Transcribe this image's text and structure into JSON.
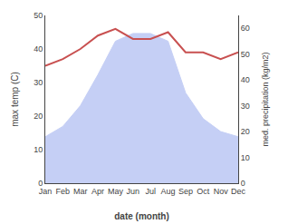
{
  "chart_data": {
    "type": "line",
    "categories": [
      "Jan",
      "Feb",
      "Mar",
      "Apr",
      "May",
      "Jun",
      "Jul",
      "Aug",
      "Sep",
      "Oct",
      "Nov",
      "Dec"
    ],
    "series": [
      {
        "type": "area",
        "color": "#c5cff5",
        "axis": "y2",
        "values": [
          18,
          22,
          30,
          42,
          55,
          58,
          58,
          55,
          35,
          25,
          20,
          18
        ]
      },
      {
        "type": "line",
        "color": "#c85050",
        "values": [
          35,
          37,
          40,
          44,
          46,
          43,
          43,
          45,
          39,
          39,
          37,
          39
        ]
      }
    ],
    "xlabel": "date (month)",
    "ylabel": "max temp (C)",
    "y2label": "med. precipitation (kg/m2)",
    "ylim": [
      0,
      50
    ],
    "yticks": [
      0,
      10,
      20,
      30,
      40,
      50
    ],
    "y2lim": [
      0,
      65
    ],
    "y2ticks": [
      0,
      10,
      20,
      30,
      40,
      50,
      60
    ],
    "grid": false
  }
}
